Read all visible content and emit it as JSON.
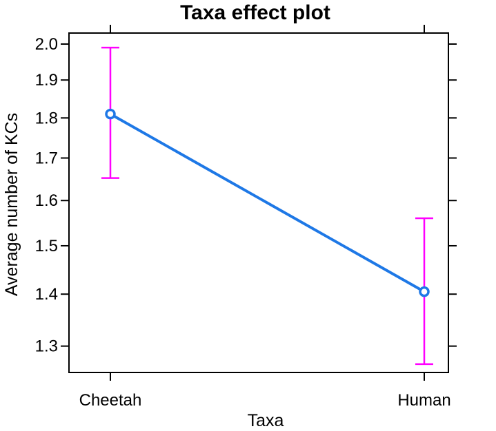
{
  "chart_data": {
    "type": "line",
    "title": "Taxa effect plot",
    "xlabel": "Taxa",
    "ylabel": "Average number of KCs",
    "y_scale": "log",
    "categories": [
      "Cheetah",
      "Human"
    ],
    "series": [
      {
        "values": [
          1.81,
          1.405
        ],
        "lower": [
          1.652,
          1.267
        ],
        "upper": [
          1.99,
          1.56
        ]
      }
    ],
    "y_ticks": [
      "1.3",
      "1.4",
      "1.5",
      "1.6",
      "1.7",
      "1.8",
      "1.9",
      "2.0"
    ],
    "ylim": [
      1.252,
      2.0
    ],
    "grid": false,
    "legend": "none",
    "colors": {
      "line": "#1e78e6",
      "error_bars": "#ff00ff",
      "axes": "#000000"
    }
  }
}
